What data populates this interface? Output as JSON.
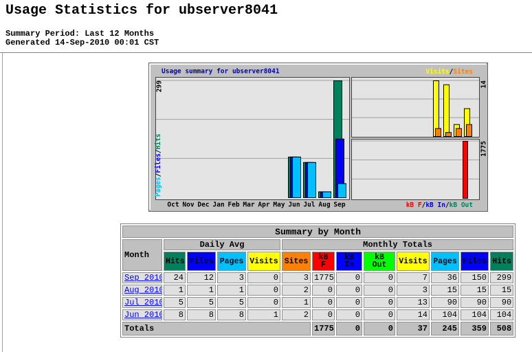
{
  "header": {
    "title": "Usage Statistics for ubserver8041",
    "period": "Summary Period: Last 12 Months",
    "generated": "Generated 14-Sep-2010 00:01 CST"
  },
  "chart_data": {
    "type": "bar",
    "title": "Usage summary for ubserver8041",
    "separator": "/",
    "categories": [
      "Oct",
      "Nov",
      "Dec",
      "Jan",
      "Feb",
      "Mar",
      "Apr",
      "May",
      "Jun",
      "Jul",
      "Aug",
      "Sep"
    ],
    "panels": [
      {
        "ylim": [
          0,
          299
        ],
        "yticks": [
          299
        ],
        "series": [
          {
            "name": "Hits",
            "color": "#00805c",
            "values": [
              0,
              0,
              0,
              0,
              0,
              0,
              0,
              0,
              104,
              90,
              15,
              299
            ]
          },
          {
            "name": "Files",
            "color": "#0000ff",
            "values": [
              0,
              0,
              0,
              0,
              0,
              0,
              0,
              0,
              104,
              90,
              15,
              150
            ]
          },
          {
            "name": "Pages",
            "color": "#00c0ff",
            "values": [
              0,
              0,
              0,
              0,
              0,
              0,
              0,
              0,
              104,
              90,
              15,
              36
            ]
          }
        ]
      },
      {
        "ylim": [
          0,
          14
        ],
        "yticks": [
          14
        ],
        "series": [
          {
            "name": "Visits",
            "color": "#ffff00",
            "values": [
              0,
              0,
              0,
              0,
              0,
              0,
              0,
              0,
              14,
              13,
              3,
              7
            ]
          },
          {
            "name": "Sites",
            "color": "#ff8000",
            "values": [
              0,
              0,
              0,
              0,
              0,
              0,
              0,
              0,
              2,
              1,
              2,
              3
            ]
          }
        ]
      },
      {
        "ylim": [
          0,
          1775
        ],
        "yticks": [
          1775
        ],
        "series": [
          {
            "name": "kB F",
            "color": "#ff0000",
            "values": [
              0,
              0,
              0,
              0,
              0,
              0,
              0,
              0,
              0,
              0,
              0,
              1775
            ]
          },
          {
            "name": "kB In",
            "color": "#0000ff",
            "values": [
              0,
              0,
              0,
              0,
              0,
              0,
              0,
              0,
              0,
              0,
              0,
              0
            ]
          },
          {
            "name": "kB Out",
            "color": "#00805c",
            "values": [
              0,
              0,
              0,
              0,
              0,
              0,
              0,
              0,
              0,
              0,
              0,
              0
            ]
          }
        ]
      }
    ]
  },
  "table": {
    "title": "Summary by Month",
    "month_header": "Month",
    "daily_header": "Daily Avg",
    "monthly_header": "Monthly Totals",
    "columns": [
      "Hits",
      "Files",
      "Pages",
      "Visits",
      "Sites",
      "kB F",
      "kB In",
      "kB Out",
      "Visits",
      "Pages",
      "Files",
      "Hits"
    ],
    "column_colors": [
      "#00805c",
      "#0000ff",
      "#00c0ff",
      "#ffff00",
      "#ff8000",
      "#ff0000",
      "#0000ff",
      "#00ff00",
      "#ffff00",
      "#00c0ff",
      "#0000ff",
      "#00805c"
    ],
    "rows": [
      {
        "month": "Sep 2010",
        "values": [
          24,
          12,
          3,
          0,
          3,
          1775,
          0,
          0,
          7,
          36,
          150,
          299
        ]
      },
      {
        "month": "Aug 2010",
        "values": [
          1,
          1,
          1,
          0,
          2,
          0,
          0,
          0,
          3,
          15,
          15,
          15
        ]
      },
      {
        "month": "Jul 2010",
        "values": [
          5,
          5,
          5,
          0,
          1,
          0,
          0,
          0,
          13,
          90,
          90,
          90
        ]
      },
      {
        "month": "Jun 2010",
        "values": [
          8,
          8,
          8,
          1,
          2,
          0,
          0,
          0,
          14,
          104,
          104,
          104
        ]
      }
    ],
    "totals_label": "Totals",
    "totals": [
      1775,
      0,
      0,
      37,
      245,
      359,
      508
    ]
  }
}
